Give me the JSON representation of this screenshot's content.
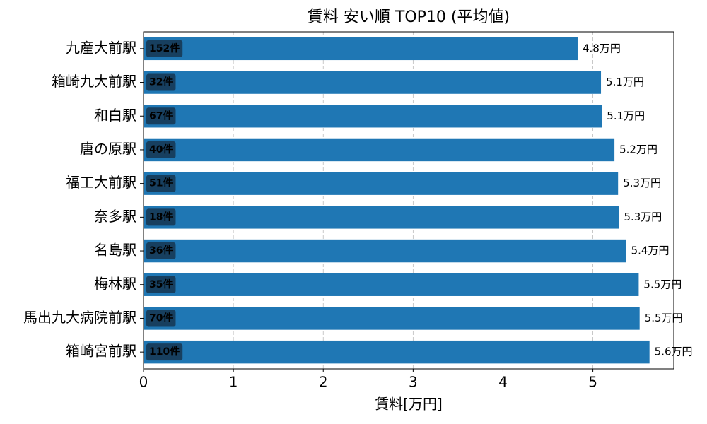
{
  "chart_data": {
    "type": "barh",
    "title": "賃料 安い順 TOP10 (平均値)",
    "x_label": "賃料[万円]",
    "categories": [
      "九産大前駅",
      "箱崎九大前駅",
      "和白駅",
      "唐の原駅",
      "福工大前駅",
      "奈多駅",
      "名島駅",
      "梅林駅",
      "馬出九大病院前駅",
      "箱崎宮前駅"
    ],
    "values": [
      4.83,
      5.09,
      5.1,
      5.24,
      5.28,
      5.29,
      5.37,
      5.51,
      5.52,
      5.63
    ],
    "value_labels": [
      "4.8万円",
      "5.1万円",
      "5.1万円",
      "5.2万円",
      "5.3万円",
      "5.3万円",
      "5.4万円",
      "5.5万円",
      "5.5万円",
      "5.6万円"
    ],
    "counts": [
      152,
      32,
      67,
      40,
      51,
      18,
      36,
      35,
      70,
      110
    ],
    "count_labels": [
      "152件",
      "32件",
      "67件",
      "40件",
      "51件",
      "18件",
      "36件",
      "35件",
      "70件",
      "110件"
    ],
    "color": "#1f77b4",
    "badge_color": "#173f5f",
    "xlim": [
      0,
      5.9
    ],
    "xticks": [
      0,
      1,
      2,
      3,
      4,
      5
    ],
    "grid": true
  }
}
